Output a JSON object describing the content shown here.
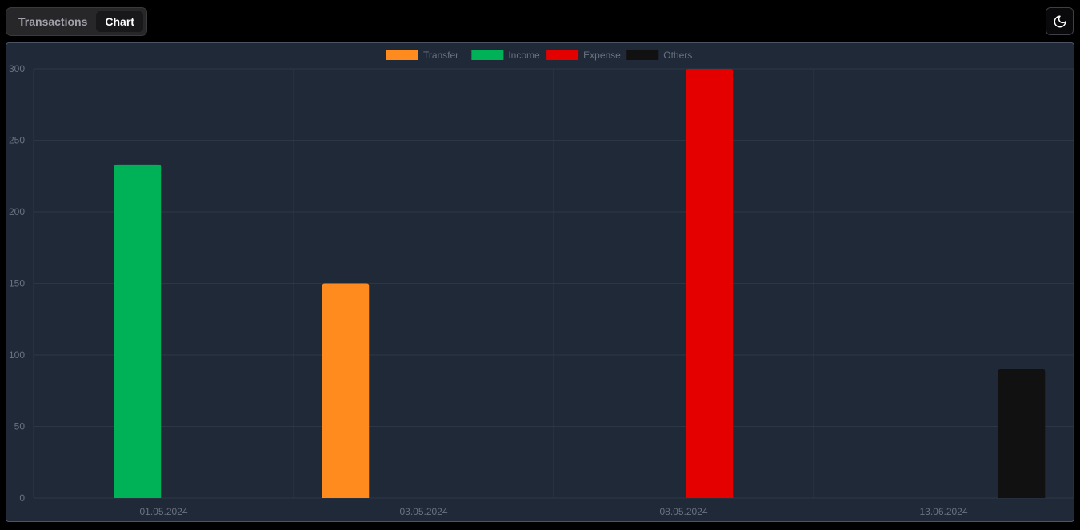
{
  "tabs": [
    {
      "label": "Transactions",
      "active": false
    },
    {
      "label": "Chart",
      "active": true
    }
  ],
  "theme_toggle": {
    "icon": "moon-icon"
  },
  "colors": {
    "transfer": "#ff8a1e",
    "income": "#00b257",
    "expense": "#e50000",
    "others": "#111111",
    "grid": "#2c3646",
    "tick_text": "#6b7280",
    "legend_text": "#6b7280"
  },
  "chart_data": {
    "type": "bar",
    "categories": [
      "01.05.2024",
      "03.05.2024",
      "08.05.2024",
      "13.06.2024"
    ],
    "series": [
      {
        "name": "Transfer",
        "color": "#ff8a1e",
        "values": [
          null,
          150,
          null,
          null
        ]
      },
      {
        "name": "Income",
        "color": "#00b257",
        "values": [
          233,
          null,
          null,
          null
        ]
      },
      {
        "name": "Expense",
        "color": "#e50000",
        "values": [
          null,
          null,
          300,
          null
        ]
      },
      {
        "name": "Others",
        "color": "#111111",
        "values": [
          null,
          null,
          null,
          90
        ]
      }
    ],
    "ylim": [
      0,
      300
    ],
    "yticks": [
      0,
      50,
      100,
      150,
      200,
      250,
      300
    ],
    "grid": true,
    "legend": "top-center"
  }
}
